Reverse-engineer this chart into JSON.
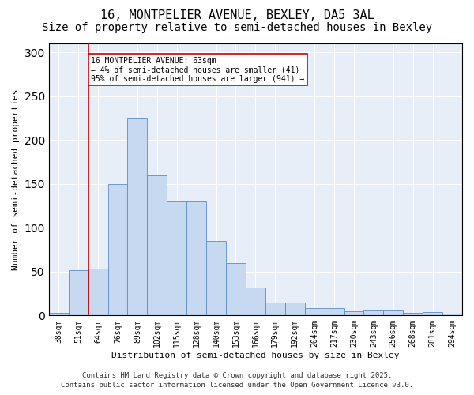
{
  "title1": "16, MONTPELIER AVENUE, BEXLEY, DA5 3AL",
  "title2": "Size of property relative to semi-detached houses in Bexley",
  "xlabel": "Distribution of semi-detached houses by size in Bexley",
  "ylabel": "Number of semi-detached properties",
  "categories": [
    "38sqm",
    "51sqm",
    "64sqm",
    "76sqm",
    "89sqm",
    "102sqm",
    "115sqm",
    "128sqm",
    "140sqm",
    "153sqm",
    "166sqm",
    "179sqm",
    "192sqm",
    "204sqm",
    "217sqm",
    "230sqm",
    "243sqm",
    "256sqm",
    "268sqm",
    "281sqm",
    "294sqm"
  ],
  "values": [
    3,
    52,
    53,
    150,
    225,
    160,
    130,
    130,
    85,
    60,
    32,
    15,
    15,
    8,
    8,
    5,
    6,
    6,
    3,
    4,
    2
  ],
  "bar_color": "#c6d9f0",
  "bar_edge_color": "#5b8ec4",
  "vline_x": 1.5,
  "vline_color": "#cc0000",
  "annotation_title": "16 MONTPELIER AVENUE: 63sqm",
  "annotation_line1": "← 4% of semi-detached houses are smaller (41)",
  "annotation_line2": "95% of semi-detached houses are larger (941) →",
  "annotation_box_color": "#ffffff",
  "annotation_box_edge": "#cc0000",
  "footer1": "Contains HM Land Registry data © Crown copyright and database right 2025.",
  "footer2": "Contains public sector information licensed under the Open Government Licence v3.0.",
  "bg_color": "#e8eef7",
  "ylim": [
    0,
    310
  ],
  "title_fontsize": 11,
  "subtitle_fontsize": 10,
  "axis_label_fontsize": 8,
  "tick_fontsize": 7,
  "footer_fontsize": 6.5,
  "annotation_fontsize": 7
}
